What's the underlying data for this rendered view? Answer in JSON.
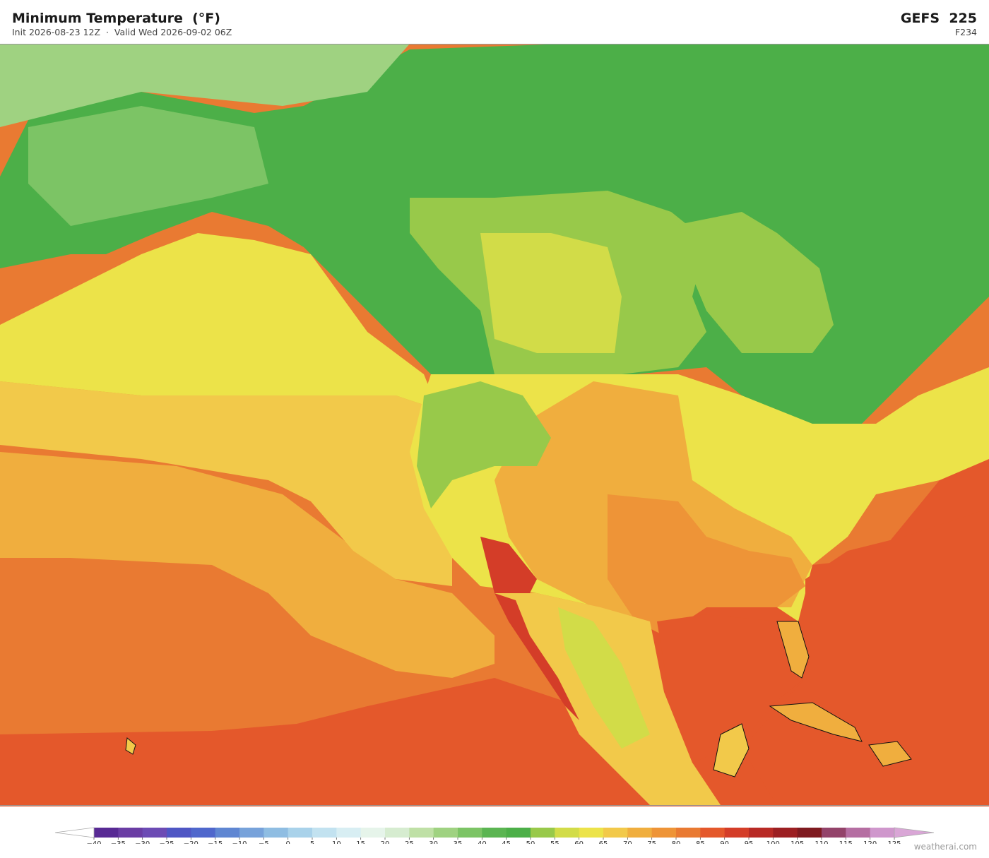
{
  "header": {
    "title": "Minimum Temperature  (°F)",
    "subtitle": "Init 2026-08-23 12Z  ·  Valid Wed 2026-09-02 06Z",
    "model": "GEFS  225",
    "forecast_hour": "F234"
  },
  "colorbar": {
    "ticks": [
      {
        "value": -40,
        "label": "−40"
      },
      {
        "value": -35,
        "label": "−35"
      },
      {
        "value": -30,
        "label": "−30"
      },
      {
        "value": -25,
        "label": "−25"
      },
      {
        "value": -20,
        "label": "−20"
      },
      {
        "value": -15,
        "label": "−15"
      },
      {
        "value": -10,
        "label": "−10"
      },
      {
        "value": -5,
        "label": "−5"
      },
      0,
      5,
      10,
      15,
      20,
      25,
      30,
      35,
      40,
      45,
      50,
      55,
      60,
      65,
      70,
      75,
      80,
      85,
      90,
      95,
      100,
      105,
      110,
      115,
      120,
      125
    ],
    "colors": [
      "#582a94",
      "#6a3da4",
      "#6c4bb4",
      "#4f56c4",
      "#4f67cc",
      "#5f86d2",
      "#77a2da",
      "#8fbde2",
      "#a9d2ea",
      "#c2e2f0",
      "#d8eef3",
      "#e6f4ea",
      "#d6ecd0",
      "#bfe0a6",
      "#9fd281",
      "#7cc465",
      "#5bb552",
      "#4caf48",
      "#98c94a",
      "#d2dc48",
      "#ece349",
      "#f2c94a",
      "#f0ae3e",
      "#ee9437",
      "#e97a32",
      "#e4582b",
      "#d43d28",
      "#b82a25",
      "#9c1f22",
      "#7f1a20",
      "#93436a",
      "#b56ea2",
      "#cf97cc"
    ],
    "under_color": "#ffffff",
    "over_color": "#d9a6d6"
  },
  "footer": {
    "credit": "weatherai.com"
  }
}
